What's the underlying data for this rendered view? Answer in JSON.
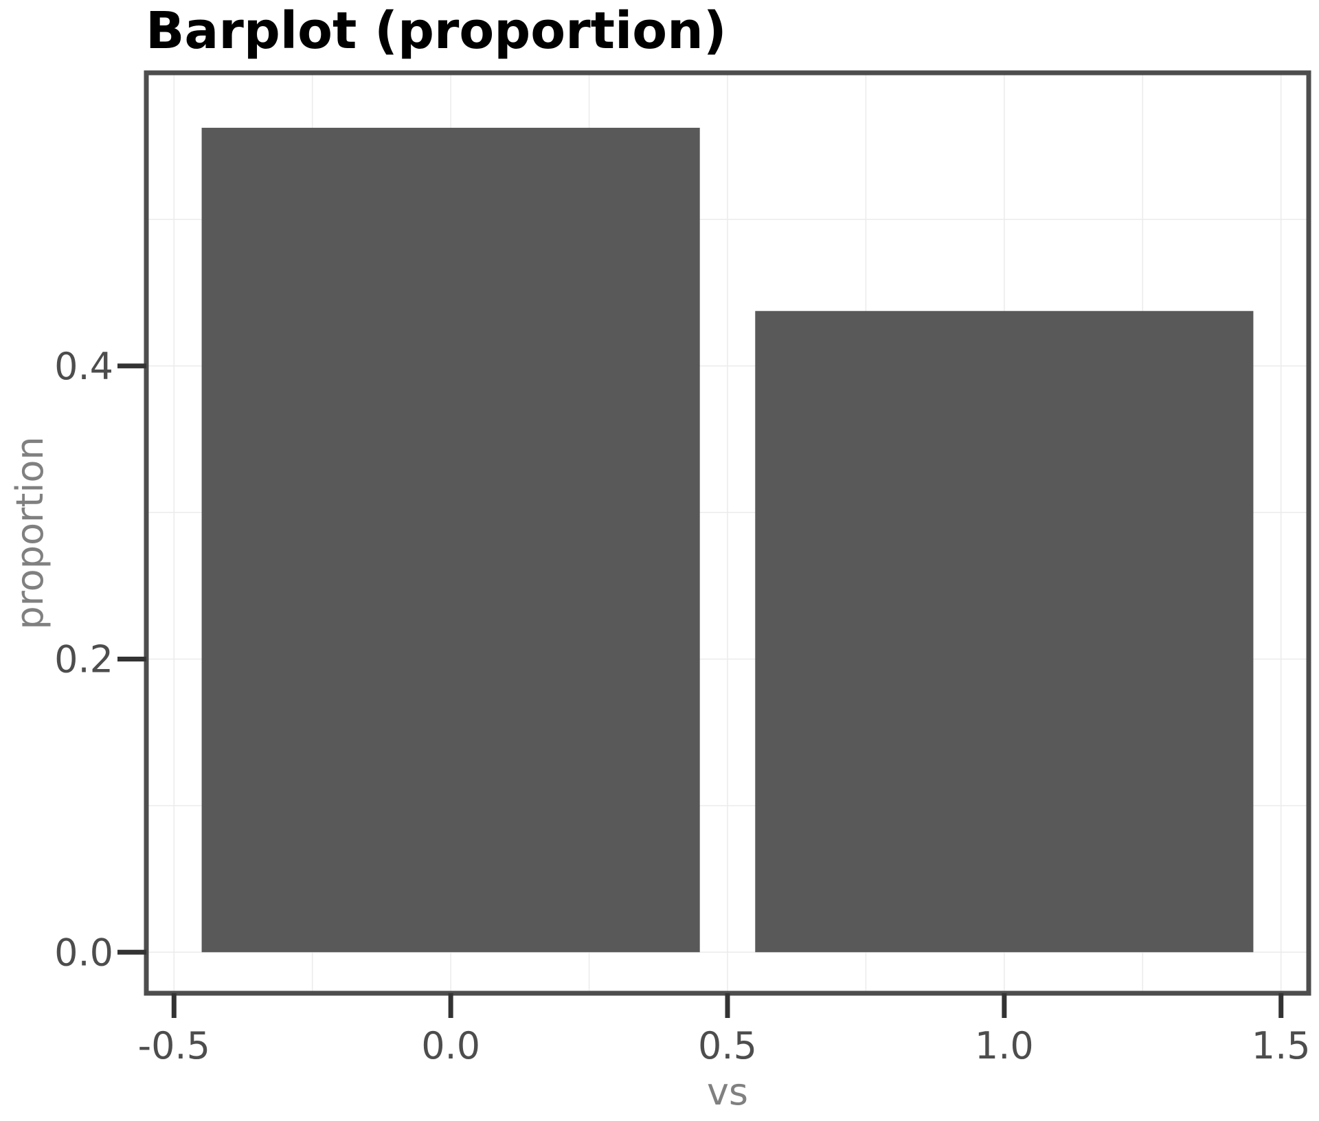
{
  "chart_data": {
    "type": "bar",
    "title": "Barplot (proportion)",
    "xlabel": "vs",
    "ylabel": "proportion",
    "x": [
      0,
      1
    ],
    "values": [
      0.5625,
      0.4375
    ],
    "bar_width": 0.9,
    "xlim": [
      -0.55,
      1.55
    ],
    "ylim": [
      -0.028,
      0.6
    ],
    "x_ticks": [
      -0.5,
      0.0,
      0.5,
      1.0,
      1.5
    ],
    "x_tick_labels": [
      "-0.5",
      "0.0",
      "0.5",
      "1.0",
      "1.5"
    ],
    "y_ticks": [
      0.0,
      0.2,
      0.4
    ],
    "y_tick_labels": [
      "0.0",
      "0.2",
      "0.4"
    ],
    "grid": true,
    "legend": "none",
    "colors": {
      "bar": "#595959",
      "grid": "#ebebeb",
      "border": "#4d4d4d",
      "tick": "#333333"
    }
  }
}
